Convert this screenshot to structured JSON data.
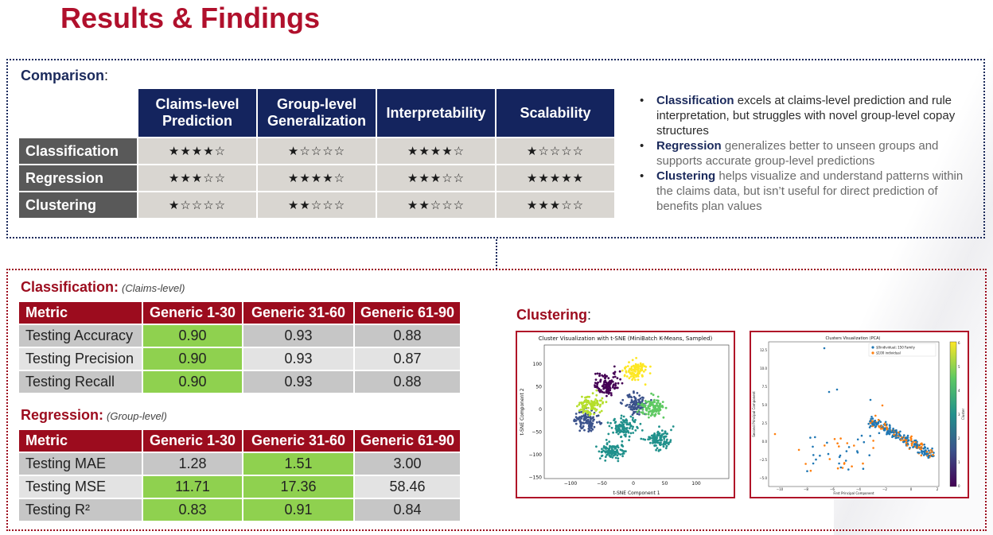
{
  "title": "Results & Findings",
  "comparison": {
    "label": "Comparison",
    "colon": ":",
    "headers": [
      "Claims-level Prediction",
      "Group-level Generalization",
      "Interpretability",
      "Scalability"
    ],
    "rows": [
      {
        "name": "Classification",
        "scores": [
          "★★★★☆",
          "★☆☆☆☆",
          "★★★★☆",
          "★☆☆☆☆"
        ]
      },
      {
        "name": "Regression",
        "scores": [
          "★★★☆☆",
          "★★★★☆",
          "★★★☆☆",
          "★★★★★"
        ]
      },
      {
        "name": "Clustering",
        "scores": [
          "★☆☆☆☆",
          "★★☆☆☆",
          "★★☆☆☆",
          "★★★☆☆"
        ]
      }
    ],
    "bullets": [
      {
        "keyword": "Classification",
        "text": " excels at claims-level prediction and rule interpretation, but struggles with novel group-level copay structures"
      },
      {
        "keyword": "Regression",
        "text": " generalizes better to unseen groups and supports accurate group-level predictions"
      },
      {
        "keyword": "Clustering",
        "text": " helps visualize and understand patterns within the claims data, but isn’t useful for direct prediction of benefits plan values"
      }
    ]
  },
  "classification": {
    "label": "Classification:",
    "sub": "(Claims-level)",
    "headers": [
      "Metric",
      "Generic 1-30",
      "Generic 31-60",
      "Generic 61-90"
    ],
    "rows": [
      {
        "metric": "Testing Accuracy",
        "values": [
          "0.90",
          "0.93",
          "0.88"
        ]
      },
      {
        "metric": "Testing Precision",
        "values": [
          "0.90",
          "0.93",
          "0.87"
        ]
      },
      {
        "metric": "Testing Recall",
        "values": [
          "0.90",
          "0.93",
          "0.88"
        ]
      }
    ]
  },
  "regression": {
    "label": "Regression:",
    "sub": "(Group-level)",
    "headers": [
      "Metric",
      "Generic 1-30",
      "Generic 31-60",
      "Generic 61-90"
    ],
    "rows": [
      {
        "metric": "Testing MAE",
        "values": [
          "1.28",
          "1.51",
          "3.00"
        ]
      },
      {
        "metric": "Testing MSE",
        "values": [
          "11.71",
          "17.36",
          "58.46"
        ]
      },
      {
        "metric": "Testing R²",
        "values": [
          "0.83",
          "0.91",
          "0.84"
        ]
      }
    ]
  },
  "clustering": {
    "label": "Clustering",
    "colon": ":",
    "tsne": {
      "title": "Cluster Visualization with t-SNE (MiniBatch K-Means, Sampled)",
      "xlabel": "t-SNE Component 1",
      "ylabel": "t-SNE Component 2",
      "xticks": [
        "−100",
        "−50",
        "0",
        "50",
        "100"
      ],
      "yticks": [
        "100",
        "50",
        "0",
        "−50",
        "−100",
        "−150"
      ],
      "colors": [
        "#440154",
        "#3b528b",
        "#21918c",
        "#5ec962",
        "#fde725",
        "#b5de2b"
      ]
    },
    "pca": {
      "title": "Clusters Visualization (PCA)",
      "xlabel": "First Principal Component",
      "ylabel": "Second Principal Component",
      "colorbar_label": "Cluster",
      "legend": [
        "$0individual; 150 Family",
        "$100 individual"
      ],
      "xticks": [
        "−10",
        "−8",
        "−6",
        "−4",
        "−2",
        "0",
        "2"
      ],
      "yticks": [
        "12.5",
        "10.0",
        "7.5",
        "5.0",
        "2.5",
        "0.0",
        "−2.5",
        "−5.0"
      ],
      "cbar_ticks": [
        "6",
        "5",
        "4",
        "3",
        "2",
        "1",
        "0"
      ],
      "colors": [
        "#1f77b4",
        "#ff7f0e"
      ]
    }
  }
}
